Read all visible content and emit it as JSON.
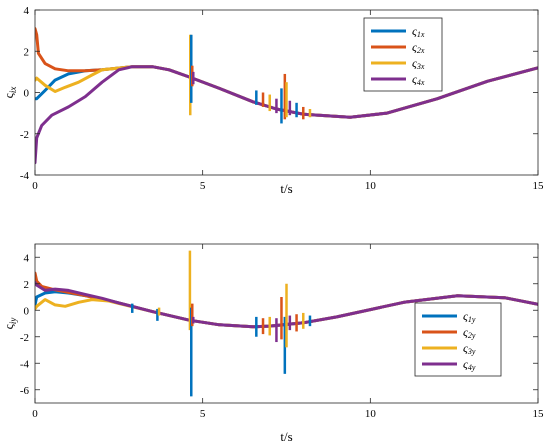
{
  "chart_data": [
    {
      "type": "line",
      "xlabel": "t/s",
      "ylabel_main": "ς",
      "ylabel_sub": "ix",
      "xlim": [
        0,
        15
      ],
      "ylim": [
        -4,
        4
      ],
      "xticks": [
        0,
        5,
        10,
        15
      ],
      "yticks": [
        -4,
        -2,
        0,
        2,
        4
      ],
      "legend_position": "top-right",
      "series": [
        {
          "name_main": "ς",
          "name_sub": "1x",
          "color": "#0072BD",
          "x": [
            0,
            0.05,
            0.3,
            0.6,
            1.0,
            1.5,
            2.0,
            2.9,
            3.5,
            4.0,
            4.6,
            5.5,
            6.5,
            7.2,
            8.0,
            9.4,
            10.5,
            12.0,
            13.5,
            15.0
          ],
          "y": [
            -0.3,
            -0.3,
            0.1,
            0.6,
            0.9,
            1.05,
            1.1,
            1.25,
            1.25,
            1.1,
            0.75,
            0.2,
            -0.45,
            -0.8,
            -1.05,
            -1.2,
            -1.0,
            -0.3,
            0.55,
            1.2
          ]
        },
        {
          "name_main": "ς",
          "name_sub": "2x",
          "color": "#D95319",
          "x": [
            0,
            0.05,
            0.1,
            0.3,
            0.6,
            1.0,
            1.5,
            2.0,
            2.9,
            3.5,
            4.0,
            4.6,
            5.5,
            6.5,
            7.2,
            8.0,
            9.4,
            10.5,
            12.0,
            13.5,
            15.0
          ],
          "y": [
            3.1,
            2.8,
            1.9,
            1.4,
            1.15,
            1.05,
            1.05,
            1.1,
            1.25,
            1.25,
            1.1,
            0.75,
            0.2,
            -0.45,
            -0.8,
            -1.05,
            -1.2,
            -1.0,
            -0.3,
            0.55,
            1.2
          ]
        },
        {
          "name_main": "ς",
          "name_sub": "3x",
          "color": "#EDB120",
          "x": [
            0,
            0.05,
            0.3,
            0.6,
            0.9,
            1.3,
            1.7,
            2.0,
            2.9,
            3.5,
            4.0,
            4.6,
            5.5,
            6.5,
            7.2,
            8.0,
            9.4,
            10.5,
            12.0,
            13.5,
            15.0
          ],
          "y": [
            0.6,
            0.7,
            0.35,
            0.05,
            0.25,
            0.5,
            0.85,
            1.1,
            1.25,
            1.25,
            1.1,
            0.75,
            0.2,
            -0.45,
            -0.8,
            -1.05,
            -1.2,
            -1.0,
            -0.3,
            0.55,
            1.2
          ]
        },
        {
          "name_main": "ς",
          "name_sub": "4x",
          "color": "#7E2F8E",
          "x": [
            0,
            0.05,
            0.2,
            0.5,
            1.0,
            1.5,
            2.0,
            2.5,
            2.9,
            3.5,
            4.0,
            4.6,
            5.5,
            6.5,
            7.2,
            8.0,
            9.4,
            10.5,
            12.0,
            13.5,
            15.0
          ],
          "y": [
            -3.4,
            -2.2,
            -1.6,
            -1.1,
            -0.7,
            -0.2,
            0.5,
            1.1,
            1.25,
            1.25,
            1.1,
            0.75,
            0.2,
            -0.45,
            -0.8,
            -1.05,
            -1.2,
            -1.0,
            -0.3,
            0.55,
            1.2
          ]
        }
      ],
      "spikes": [
        {
          "x": 4.63,
          "lo": -1.1,
          "hi": 2.8,
          "color": "#EDB120"
        },
        {
          "x": 4.66,
          "lo": -0.5,
          "hi": 2.8,
          "color": "#0072BD"
        },
        {
          "x": 4.69,
          "lo": 0.3,
          "hi": 1.3,
          "color": "#D95319"
        },
        {
          "x": 4.72,
          "lo": 0.4,
          "hi": 1.0,
          "color": "#7E2F8E"
        },
        {
          "x": 6.6,
          "lo": -0.6,
          "hi": 0.1,
          "color": "#0072BD"
        },
        {
          "x": 6.8,
          "lo": -0.7,
          "hi": 0.0,
          "color": "#D95319"
        },
        {
          "x": 7.0,
          "lo": -0.9,
          "hi": -0.1,
          "color": "#EDB120"
        },
        {
          "x": 7.2,
          "lo": -1.0,
          "hi": -0.3,
          "color": "#7E2F8E"
        },
        {
          "x": 7.35,
          "lo": -1.5,
          "hi": 0.2,
          "color": "#0072BD"
        },
        {
          "x": 7.45,
          "lo": -1.3,
          "hi": 0.9,
          "color": "#D95319"
        },
        {
          "x": 7.5,
          "lo": -1.2,
          "hi": 0.5,
          "color": "#EDB120"
        },
        {
          "x": 7.6,
          "lo": -1.1,
          "hi": -0.4,
          "color": "#7E2F8E"
        },
        {
          "x": 7.8,
          "lo": -1.2,
          "hi": -0.5,
          "color": "#0072BD"
        },
        {
          "x": 8.0,
          "lo": -1.3,
          "hi": -0.7,
          "color": "#D95319"
        },
        {
          "x": 8.2,
          "lo": -1.2,
          "hi": -0.8,
          "color": "#EDB120"
        }
      ]
    },
    {
      "type": "line",
      "xlabel": "t/s",
      "ylabel_main": "ς",
      "ylabel_sub": "iy",
      "xlim": [
        0,
        15
      ],
      "ylim": [
        -7,
        5
      ],
      "xticks": [
        0,
        5,
        10,
        15
      ],
      "yticks": [
        -6,
        -4,
        -2,
        0,
        2,
        4
      ],
      "legend_position": "bottom-right",
      "series": [
        {
          "name_main": "ς",
          "name_sub": "1y",
          "color": "#0072BD",
          "x": [
            0,
            0.05,
            0.3,
            0.6,
            1.0,
            1.5,
            2.0,
            2.5,
            3.5,
            4.6,
            5.5,
            6.5,
            7.0,
            8.0,
            9.0,
            10.0,
            11.0,
            12.6,
            14.0,
            15.0
          ],
          "y": [
            0.4,
            1.0,
            1.3,
            1.4,
            1.3,
            1.1,
            0.85,
            0.55,
            -0.1,
            -0.75,
            -1.1,
            -1.25,
            -1.2,
            -0.95,
            -0.5,
            0.05,
            0.6,
            1.1,
            0.95,
            0.45
          ]
        },
        {
          "name_main": "ς",
          "name_sub": "2y",
          "color": "#D95319",
          "x": [
            0,
            0.05,
            0.2,
            0.5,
            1.0,
            1.5,
            2.0,
            2.5,
            3.5,
            4.6,
            5.5,
            6.5,
            7.0,
            8.0,
            9.0,
            10.0,
            11.0,
            12.6,
            14.0,
            15.0
          ],
          "y": [
            2.8,
            2.2,
            1.8,
            1.6,
            1.35,
            1.1,
            0.85,
            0.55,
            -0.1,
            -0.75,
            -1.1,
            -1.25,
            -1.2,
            -0.95,
            -0.5,
            0.05,
            0.6,
            1.1,
            0.95,
            0.45
          ]
        },
        {
          "name_main": "ς",
          "name_sub": "3y",
          "color": "#EDB120",
          "x": [
            0,
            0.05,
            0.3,
            0.6,
            0.9,
            1.3,
            1.7,
            2.2,
            3.5,
            4.6,
            5.5,
            6.5,
            7.0,
            8.0,
            9.0,
            10.0,
            11.0,
            12.6,
            14.0,
            15.0
          ],
          "y": [
            0.1,
            0.3,
            0.8,
            0.4,
            0.3,
            0.6,
            0.8,
            0.7,
            -0.1,
            -0.75,
            -1.1,
            -1.25,
            -1.2,
            -0.95,
            -0.5,
            0.05,
            0.6,
            1.1,
            0.95,
            0.45
          ]
        },
        {
          "name_main": "ς",
          "name_sub": "4y",
          "color": "#7E2F8E",
          "x": [
            0,
            0.05,
            0.3,
            0.6,
            1.0,
            1.5,
            2.0,
            2.5,
            3.5,
            4.6,
            5.5,
            6.5,
            7.0,
            8.0,
            9.0,
            10.0,
            11.0,
            12.6,
            14.0,
            15.0
          ],
          "y": [
            2.1,
            1.9,
            1.5,
            1.6,
            1.5,
            1.2,
            0.9,
            0.55,
            -0.1,
            -0.75,
            -1.1,
            -1.25,
            -1.2,
            -0.95,
            -0.5,
            0.05,
            0.6,
            1.1,
            0.95,
            0.45
          ]
        }
      ],
      "spikes": [
        {
          "x": 2.9,
          "lo": -0.2,
          "hi": 0.5,
          "color": "#0072BD"
        },
        {
          "x": 3.65,
          "lo": -0.8,
          "hi": 0.1,
          "color": "#0072BD"
        },
        {
          "x": 3.7,
          "lo": -0.4,
          "hi": 0.2,
          "color": "#EDB120"
        },
        {
          "x": 4.62,
          "lo": -1.5,
          "hi": 4.5,
          "color": "#EDB120"
        },
        {
          "x": 4.66,
          "lo": -6.5,
          "hi": 0.2,
          "color": "#0072BD"
        },
        {
          "x": 4.69,
          "lo": -1.2,
          "hi": 0.5,
          "color": "#D95319"
        },
        {
          "x": 4.72,
          "lo": -1.0,
          "hi": -0.5,
          "color": "#7E2F8E"
        },
        {
          "x": 6.6,
          "lo": -2.0,
          "hi": -0.5,
          "color": "#0072BD"
        },
        {
          "x": 6.8,
          "lo": -1.8,
          "hi": -0.6,
          "color": "#D95319"
        },
        {
          "x": 7.0,
          "lo": -1.9,
          "hi": -0.5,
          "color": "#EDB120"
        },
        {
          "x": 7.2,
          "lo": -2.4,
          "hi": -0.6,
          "color": "#7E2F8E"
        },
        {
          "x": 7.35,
          "lo": -2.2,
          "hi": 1.0,
          "color": "#D95319"
        },
        {
          "x": 7.45,
          "lo": -4.8,
          "hi": -0.5,
          "color": "#0072BD"
        },
        {
          "x": 7.5,
          "lo": -2.8,
          "hi": 2.0,
          "color": "#EDB120"
        },
        {
          "x": 7.6,
          "lo": -1.5,
          "hi": -0.4,
          "color": "#7E2F8E"
        },
        {
          "x": 7.8,
          "lo": -1.6,
          "hi": -0.3,
          "color": "#D95319"
        },
        {
          "x": 8.0,
          "lo": -1.4,
          "hi": -0.2,
          "color": "#EDB120"
        },
        {
          "x": 8.2,
          "lo": -1.2,
          "hi": -0.4,
          "color": "#0072BD"
        }
      ]
    }
  ]
}
